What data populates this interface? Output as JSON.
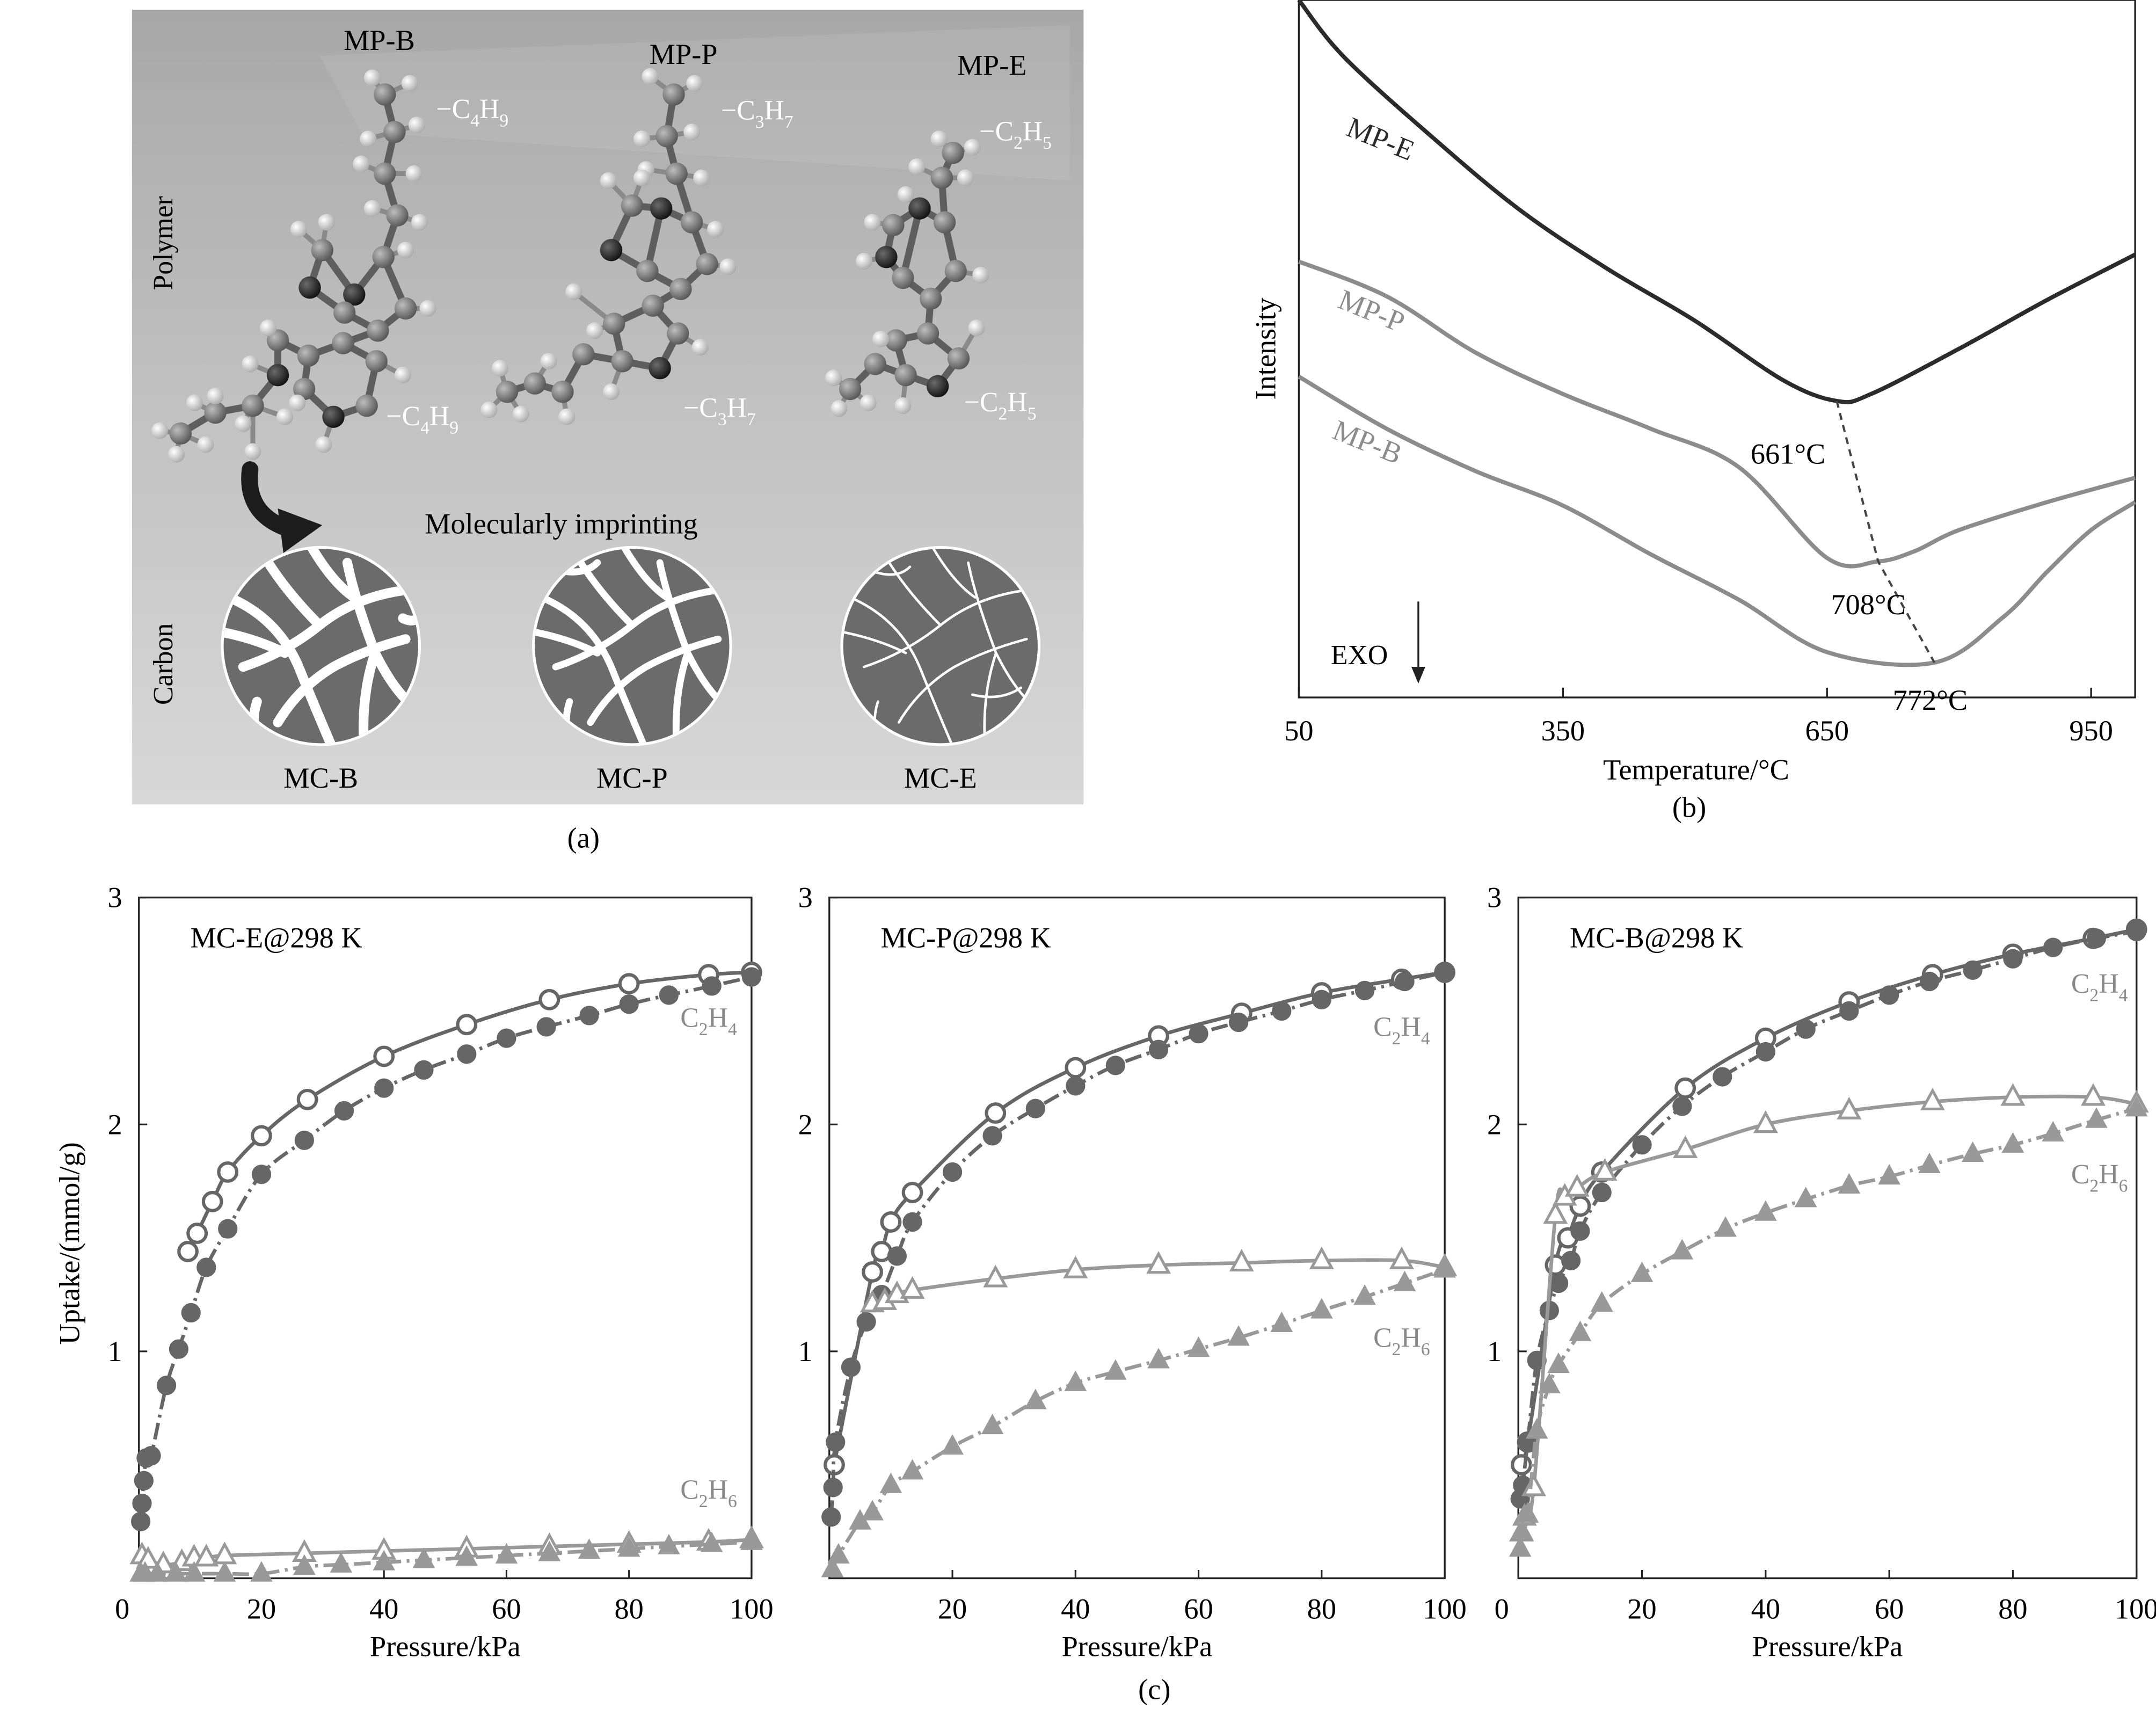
{
  "panel_labels": {
    "a": "(a)",
    "b": "(b)",
    "c": "(c)"
  },
  "panel_a": {
    "polymers": [
      {
        "name": "MP-B",
        "side_top": [
          "C",
          "4",
          "H",
          "9"
        ],
        "side_bottom": [
          "C",
          "4",
          "H",
          "9"
        ]
      },
      {
        "name": "MP-P",
        "side_top": [
          "C",
          "3",
          "H",
          "7"
        ],
        "side_bottom": [
          "C",
          "3",
          "H",
          "7"
        ]
      },
      {
        "name": "MP-E",
        "side_top": [
          "C",
          "2",
          "H",
          "5"
        ],
        "side_bottom": [
          "C",
          "2",
          "H",
          "5"
        ]
      }
    ],
    "row_label_top": "Polymer",
    "row_label_bottom": "Carbon",
    "process_label": "Molecularly imprinting",
    "carbons": [
      "MC-B",
      "MC-P",
      "MC-E"
    ],
    "colors": {
      "background": "#bfbfbf",
      "atom_carbon": "#6e6e6e",
      "atom_nitrogen": "#1f1f1f",
      "atom_hydrogen": "#e6e6e6",
      "pore_fill": "#6b6b6b"
    }
  },
  "chart_data": [
    {
      "id": "b",
      "type": "line",
      "xlabel": "Temperature/°C",
      "ylabel": "Intensity",
      "xlim": [
        50,
        1000
      ],
      "xticks": [
        50,
        350,
        650,
        950
      ],
      "y_values_shown": false,
      "exo_label": "EXO",
      "series": [
        {
          "name": "MP-E",
          "color": "#2b2b2b",
          "x": [
            50,
            100,
            200,
            300,
            400,
            500,
            600,
            661,
            700,
            800,
            900,
            1000
          ],
          "y": [
            100,
            92,
            80.5,
            70,
            61.5,
            54,
            45.5,
            42.5,
            43.5,
            50,
            57,
            63.5
          ]
        },
        {
          "name": "MP-P",
          "color": "#8c8c8c",
          "x": [
            50,
            150,
            250,
            350,
            450,
            550,
            650,
            708,
            750,
            800,
            900,
            1000
          ],
          "y": [
            62.5,
            57.5,
            49.5,
            43.5,
            38.5,
            33,
            20,
            19.5,
            21,
            24,
            28,
            31.5
          ]
        },
        {
          "name": "MP-B",
          "color": "#8c8c8c",
          "x": [
            50,
            150,
            250,
            350,
            450,
            550,
            650,
            772,
            850,
            900,
            950,
            1000
          ],
          "y": [
            46,
            38.5,
            32.5,
            27.5,
            20.5,
            14,
            6.5,
            5,
            11.5,
            18,
            24,
            28
          ]
        }
      ],
      "annotations": [
        {
          "text": "661°C",
          "x": 661,
          "y": 42.5
        },
        {
          "text": "708°C",
          "x": 708,
          "y": 19.5
        },
        {
          "text": "772°C",
          "x": 772,
          "y": 5
        }
      ]
    },
    {
      "id": "c1",
      "type": "line",
      "title": "MC-E@298 K",
      "xlabel": "Pressure/kPa",
      "ylabel": "Uptake/(mmol/g)",
      "xlim": [
        0,
        100
      ],
      "ylim": [
        0,
        3
      ],
      "xticks": [
        0,
        20,
        40,
        60,
        80,
        100
      ],
      "yticks": [
        1,
        2,
        3
      ],
      "series": [
        {
          "name": "C2H4",
          "marker": "circle-open",
          "style": "solid",
          "color": "#666666",
          "x": [
            8,
            9.5,
            12,
            14.5,
            20,
            27.5,
            40,
            53.5,
            67,
            80,
            93,
            100
          ],
          "y": [
            1.44,
            1.52,
            1.66,
            1.79,
            1.95,
            2.11,
            2.3,
            2.44,
            2.55,
            2.62,
            2.66,
            2.67
          ]
        },
        {
          "name": "C2H4",
          "marker": "circle-filled",
          "style": "dashdot",
          "color": "#666666",
          "x": [
            0.3,
            0.5,
            0.8,
            1.2,
            2,
            4.5,
            6.5,
            8.5,
            11,
            14.5,
            20,
            27,
            33.5,
            40,
            46.5,
            53.5,
            60,
            66.5,
            73.5,
            80,
            86.5,
            93.5,
            100
          ],
          "y": [
            0.25,
            0.33,
            0.43,
            0.53,
            0.54,
            0.85,
            1.01,
            1.17,
            1.37,
            1.54,
            1.78,
            1.93,
            2.06,
            2.16,
            2.24,
            2.31,
            2.38,
            2.43,
            2.48,
            2.53,
            2.57,
            2.61,
            2.65
          ]
        },
        {
          "name": "C2H6",
          "marker": "triangle-open",
          "style": "solid",
          "color": "#999999",
          "x": [
            0.5,
            1.5,
            4,
            7,
            9,
            11,
            14,
            27,
            40,
            53.5,
            67,
            80,
            93,
            100
          ],
          "y": [
            0.1,
            0.08,
            0.06,
            0.07,
            0.09,
            0.09,
            0.1,
            0.11,
            0.12,
            0.13,
            0.14,
            0.15,
            0.16,
            0.17
          ]
        },
        {
          "name": "C2H6",
          "marker": "triangle-filled",
          "style": "dashdot",
          "color": "#999999",
          "x": [
            0.3,
            1,
            3,
            6,
            9,
            14,
            20,
            27,
            33,
            40,
            46.5,
            53.5,
            60,
            67,
            73.5,
            80,
            86.5,
            93.5,
            100
          ],
          "y": [
            0.02,
            0.02,
            0.02,
            0.02,
            0.02,
            0.02,
            0.02,
            0.05,
            0.06,
            0.07,
            0.08,
            0.09,
            0.1,
            0.11,
            0.12,
            0.13,
            0.14,
            0.15,
            0.16
          ]
        }
      ],
      "series_labels": [
        {
          "text": [
            "C",
            "2",
            "H",
            "4"
          ],
          "x": 93,
          "y": 2.43
        },
        {
          "text": [
            "C",
            "2",
            "H",
            "6"
          ],
          "x": 93,
          "y": 0.35
        }
      ]
    },
    {
      "id": "c2",
      "type": "line",
      "title": "MC-P@298 K",
      "xlabel": "Pressure/kPa",
      "ylabel": "",
      "xlim": [
        0,
        100
      ],
      "ylim": [
        0,
        3
      ],
      "xticks": [
        20,
        40,
        60,
        80,
        100
      ],
      "yticks": [
        1,
        2,
        3
      ],
      "series": [
        {
          "name": "C2H4",
          "marker": "circle-open",
          "style": "solid",
          "color": "#666666",
          "x": [
            0.8,
            7,
            8.5,
            10,
            13.5,
            27,
            40,
            53.5,
            67,
            80,
            93,
            100
          ],
          "y": [
            0.5,
            1.35,
            1.44,
            1.57,
            1.7,
            2.05,
            2.25,
            2.39,
            2.49,
            2.58,
            2.64,
            2.67
          ]
        },
        {
          "name": "C2H4",
          "marker": "circle-filled",
          "style": "dashdot",
          "color": "#666666",
          "x": [
            0.3,
            0.6,
            1,
            3.5,
            6,
            8.5,
            11,
            13.5,
            20,
            26.5,
            33.5,
            40,
            46.5,
            53.5,
            60,
            66.5,
            73.5,
            80,
            87,
            93.5,
            100
          ],
          "y": [
            0.27,
            0.4,
            0.6,
            0.93,
            1.13,
            1.25,
            1.42,
            1.57,
            1.79,
            1.95,
            2.07,
            2.17,
            2.26,
            2.33,
            2.4,
            2.45,
            2.5,
            2.55,
            2.59,
            2.63,
            2.67
          ]
        },
        {
          "name": "C2H6",
          "marker": "triangle-open",
          "style": "solid",
          "color": "#999999",
          "x": [
            7,
            9,
            11,
            13.5,
            27,
            40,
            53.5,
            67,
            80,
            93,
            100
          ],
          "y": [
            1.21,
            1.22,
            1.25,
            1.27,
            1.32,
            1.36,
            1.38,
            1.39,
            1.4,
            1.4,
            1.37
          ]
        },
        {
          "name": "C2H6",
          "marker": "triangle-filled",
          "style": "dashdot",
          "color": "#999999",
          "x": [
            0.5,
            1.5,
            5,
            7,
            10,
            13.5,
            20,
            26.5,
            33.5,
            40,
            46.5,
            53.5,
            60,
            66.5,
            73.5,
            80,
            87,
            93.5,
            100
          ],
          "y": [
            0.04,
            0.1,
            0.25,
            0.29,
            0.41,
            0.47,
            0.58,
            0.67,
            0.78,
            0.86,
            0.91,
            0.96,
            1.01,
            1.06,
            1.12,
            1.18,
            1.24,
            1.3,
            1.36
          ]
        }
      ],
      "series_labels": [
        {
          "text": [
            "C",
            "2",
            "H",
            "4"
          ],
          "x": 93,
          "y": 2.39
        },
        {
          "text": [
            "C",
            "2",
            "H",
            "6"
          ],
          "x": 93,
          "y": 1.02
        }
      ]
    },
    {
      "id": "c3",
      "type": "line",
      "title": "MC-B@298 K",
      "xlabel": "Pressure/kPa",
      "ylabel": "",
      "xlim": [
        0,
        100
      ],
      "ylim": [
        0,
        3
      ],
      "xticks": [
        0,
        20,
        40,
        60,
        80,
        100
      ],
      "yticks": [
        1,
        2,
        3
      ],
      "series": [
        {
          "name": "C2H4",
          "marker": "circle-open",
          "style": "solid",
          "color": "#666666",
          "x": [
            0.5,
            1.5,
            6,
            8,
            10,
            13.5,
            27,
            40,
            53.5,
            67,
            80,
            93,
            100
          ],
          "y": [
            0.5,
            0.6,
            1.38,
            1.5,
            1.64,
            1.79,
            2.16,
            2.38,
            2.54,
            2.66,
            2.75,
            2.82,
            2.86
          ]
        },
        {
          "name": "C2H4",
          "marker": "circle-filled",
          "style": "dashdot",
          "color": "#666666",
          "x": [
            0.3,
            0.7,
            1.5,
            3,
            5,
            6.5,
            8.5,
            10,
            13.5,
            20,
            26.5,
            33,
            40,
            46.5,
            53.5,
            60,
            66.5,
            73.5,
            80,
            86.5,
            93.5,
            100
          ],
          "y": [
            0.35,
            0.41,
            0.6,
            0.96,
            1.18,
            1.3,
            1.4,
            1.53,
            1.7,
            1.91,
            2.08,
            2.21,
            2.32,
            2.42,
            2.5,
            2.57,
            2.63,
            2.68,
            2.73,
            2.78,
            2.82,
            2.85
          ]
        },
        {
          "name": "C2H6",
          "marker": "triangle-open",
          "style": "solid",
          "color": "#999999",
          "x": [
            0.5,
            1,
            2.5,
            6,
            7.5,
            9.5,
            14,
            27,
            40,
            53.5,
            67,
            80,
            93,
            100
          ],
          "y": [
            0.2,
            0.27,
            0.4,
            1.6,
            1.68,
            1.72,
            1.79,
            1.89,
            2.0,
            2.06,
            2.1,
            2.12,
            2.12,
            2.09
          ]
        },
        {
          "name": "C2H6",
          "marker": "triangle-filled",
          "style": "dashdot",
          "color": "#999999",
          "x": [
            0.3,
            0.7,
            1.5,
            3,
            5,
            6.5,
            10,
            13.5,
            20,
            26.5,
            33.5,
            40,
            46.5,
            53.5,
            60,
            66.5,
            73.5,
            80,
            86.5,
            93.5,
            100
          ],
          "y": [
            0.13,
            0.2,
            0.28,
            0.65,
            0.85,
            0.94,
            1.08,
            1.21,
            1.34,
            1.44,
            1.54,
            1.61,
            1.67,
            1.73,
            1.77,
            1.82,
            1.87,
            1.91,
            1.96,
            2.02,
            2.07
          ]
        }
      ],
      "series_labels": [
        {
          "text": [
            "C",
            "2",
            "H",
            "4"
          ],
          "x": 94,
          "y": 2.58
        },
        {
          "text": [
            "C",
            "2",
            "H",
            "6"
          ],
          "x": 94,
          "y": 1.74
        }
      ]
    }
  ]
}
